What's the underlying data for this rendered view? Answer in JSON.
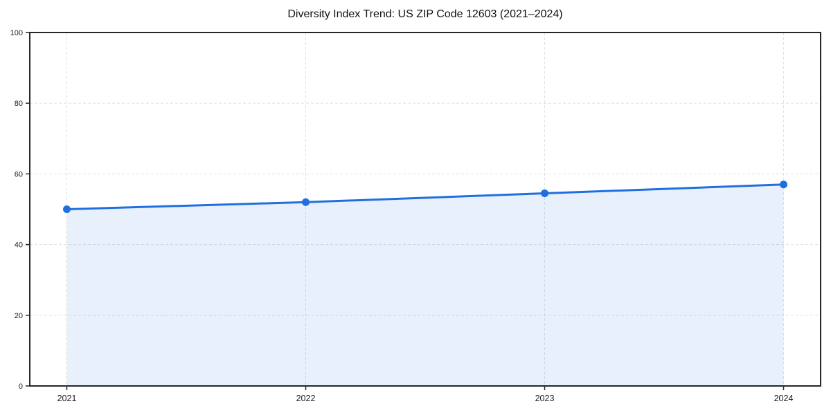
{
  "header": {
    "title": "Diversity Index Trend: US ZIP Code 12603 (2021–2024)"
  },
  "chart_data": {
    "type": "line",
    "title": "Diversity Index Trend: US ZIP Code 12603 (2021–2024)",
    "series_name": "Diversity Index",
    "x": [
      "2021",
      "2022",
      "2023",
      "2024"
    ],
    "values": [
      50,
      52,
      54.5,
      57
    ],
    "xlabel": "",
    "ylabel": "",
    "ylim": [
      0,
      100
    ],
    "yticks": [
      0,
      20,
      40,
      60,
      80,
      100
    ],
    "grid": "dashed",
    "legend": "none",
    "marker": "circle",
    "area_fill": true,
    "colors": {
      "line": "#1f6fe0",
      "marker": "#1f6fe0",
      "area": "rgba(31,111,224,0.10)",
      "grid": "#e0e0e0",
      "spine": "#262626",
      "text": "#1a1a1a",
      "background": "#ffffff"
    }
  }
}
